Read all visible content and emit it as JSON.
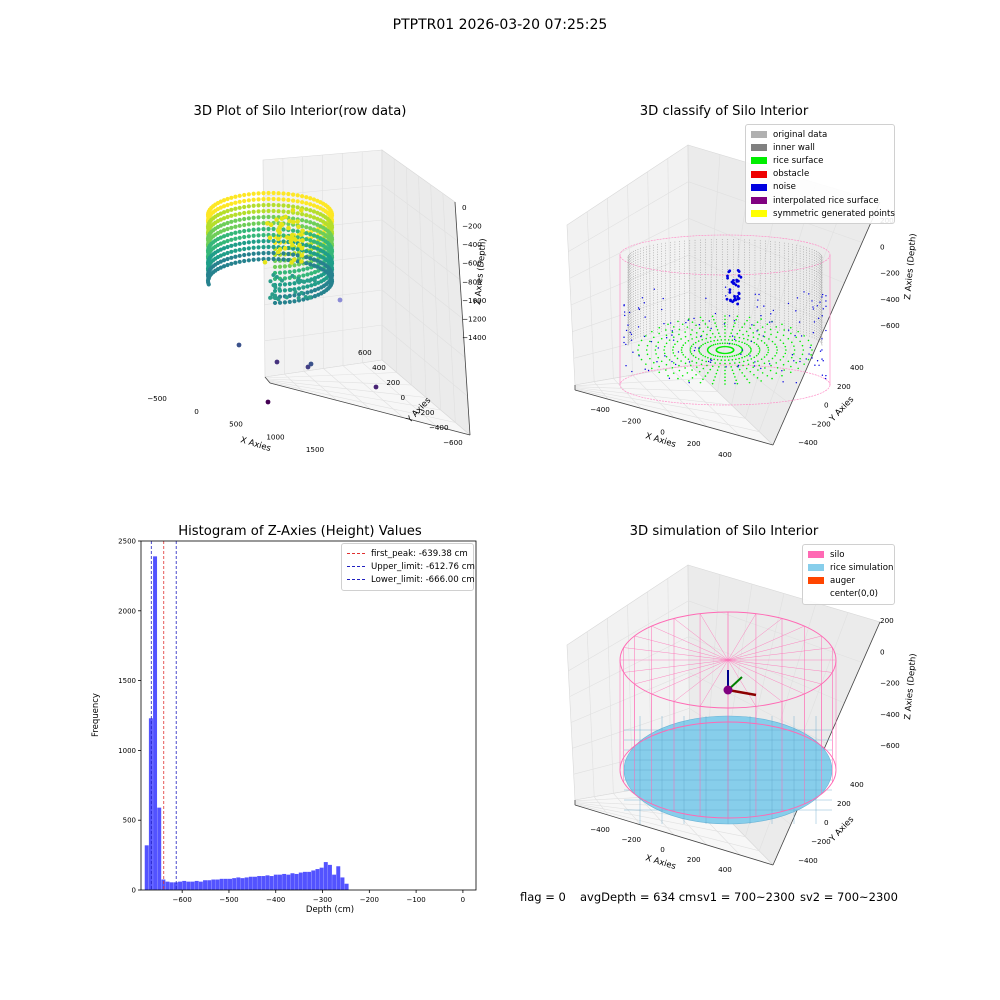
{
  "suptitle": "PTPTR01 2026-03-20 07:25:25",
  "panels": {
    "raw": {
      "title": "3D Plot of Silo Interior(row data)",
      "xlabel": "X Axies",
      "ylabel": "Y Axies",
      "zlabel": "Z Axies (Depth)",
      "xticks": [
        "−500",
        "0",
        "500",
        "1000",
        "1500"
      ],
      "yticks": [
        "600",
        "400",
        "200",
        "0",
        "−200",
        "−400",
        "−600"
      ],
      "zticks": [
        "0",
        "−200",
        "−400",
        "−600",
        "−800",
        "−1000",
        "−1200",
        "−1400"
      ]
    },
    "classify": {
      "title": "3D classify of Silo Interior",
      "xlabel": "X Axies",
      "ylabel": "Y Axies",
      "zlabel": "Z Axies (Depth)",
      "xticks": [
        "−400",
        "−200",
        "0",
        "200",
        "400"
      ],
      "yticks": [
        "400",
        "200",
        "0",
        "−200",
        "−400"
      ],
      "zticks": [
        "200",
        "0",
        "−200",
        "−400",
        "−600"
      ],
      "legend": [
        {
          "label": "original data",
          "color": "#b0b0b0"
        },
        {
          "label": "inner wall",
          "color": "#808080"
        },
        {
          "label": "rice surface",
          "color": "#00ee00"
        },
        {
          "label": "obstacle",
          "color": "#ee0000"
        },
        {
          "label": "noise",
          "color": "#0000e0"
        },
        {
          "label": "interpolated rice surface",
          "color": "#800080"
        },
        {
          "label": "symmetric generated points",
          "color": "#ffff00"
        }
      ]
    },
    "simulation": {
      "title": "3D simulation of Silo Interior",
      "xlabel": "X Axies",
      "ylabel": "Y Axies",
      "zlabel": "Z Axies (Depth)",
      "xticks": [
        "−400",
        "−200",
        "0",
        "200",
        "400"
      ],
      "yticks": [
        "400",
        "200",
        "0",
        "−200",
        "−400"
      ],
      "zticks": [
        "200",
        "0",
        "−200",
        "−400",
        "−600"
      ],
      "legend": [
        {
          "label": "silo",
          "color": "#ff69b4"
        },
        {
          "label": "rice simulation",
          "color": "#87ceeb"
        },
        {
          "label": "auger",
          "color": "#ff4500"
        },
        {
          "label": "center(0,0)",
          "color": ""
        }
      ]
    }
  },
  "status": {
    "flag": "flag = 0",
    "avg": "avgDepth = 634 cm",
    "sv1": "sv1 = 700~2300",
    "sv2": "sv2 = 700~2300"
  },
  "chart_data": {
    "type": "bar",
    "title": "Histogram of Z-Axies (Height) Values",
    "xlabel": "Depth (cm)",
    "ylabel": "Frequency",
    "xlim": [
      -688,
      28
    ],
    "ylim": [
      0,
      2500
    ],
    "xticks": [
      -600,
      -500,
      -400,
      -300,
      -200,
      -100,
      0
    ],
    "yticks": [
      0,
      500,
      1000,
      1500,
      2000,
      2500
    ],
    "bin_start": -680,
    "bin_width": 8.9,
    "values": [
      320,
      1230,
      2390,
      590,
      75,
      60,
      55,
      55,
      60,
      65,
      60,
      60,
      65,
      60,
      70,
      70,
      75,
      75,
      80,
      80,
      80,
      85,
      90,
      85,
      90,
      95,
      95,
      100,
      100,
      105,
      100,
      110,
      110,
      115,
      110,
      120,
      115,
      125,
      130,
      130,
      140,
      150,
      160,
      200,
      180,
      110,
      170,
      90,
      45
    ],
    "bar_color": "#4a4aff",
    "vlines": [
      {
        "label": "first_peak: -639.38 cm",
        "x": -639.38,
        "color": "#e03030"
      },
      {
        "label": "Upper_limit: -612.76 cm",
        "x": -612.76,
        "color": "#2020c0"
      },
      {
        "label": "Lower_limit: -666.00 cm",
        "x": -666.0,
        "color": "#2020c0"
      }
    ],
    "legend_position": "upper right"
  }
}
